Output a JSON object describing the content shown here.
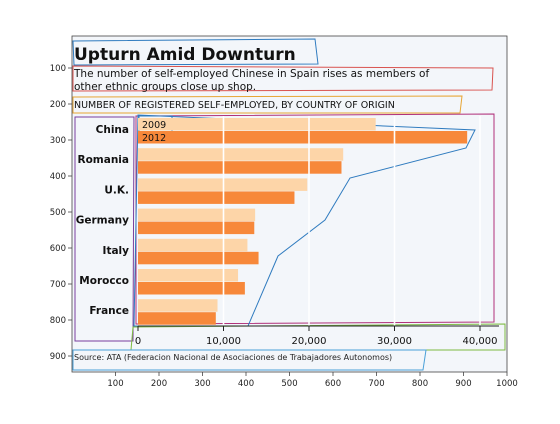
{
  "figure": {
    "frame_x_ticks": [
      "100",
      "200",
      "300",
      "400",
      "500",
      "600",
      "700",
      "800",
      "900",
      "1000"
    ],
    "frame_y_ticks": [
      "100",
      "200",
      "300",
      "400",
      "500",
      "600",
      "700",
      "800",
      "900"
    ]
  },
  "chart_data": {
    "type": "bar",
    "orientation": "horizontal",
    "title": "Upturn Amid Downturn",
    "subtitle": "The number of self-employed Chinese in Spain rises as members of other ethnic groups close up shop.",
    "subtitle_lines": [
      "The number of self-employed Chinese in Spain rises as members of",
      "other ethnic groups close up shop."
    ],
    "ylabel": "NUMBER OF REGISTERED SELF-EMPLOYED, BY COUNTRY OF ORIGIN",
    "source": "Source: ATA (Federacion Nacional de Asociaciones de Trabajadores Autonomos)",
    "categories": [
      "China",
      "Romania",
      "U.K.",
      "Germany",
      "Italy",
      "Morocco",
      "France"
    ],
    "series": [
      {
        "name": "2009",
        "color": "#fdd5a8",
        "values": [
          27800,
          24000,
          19800,
          13700,
          12800,
          11700,
          9300
        ]
      },
      {
        "name": "2012",
        "color": "#f7883a",
        "values": [
          38500,
          23800,
          18300,
          13600,
          14100,
          12500,
          9100
        ]
      }
    ],
    "xlim": [
      0,
      42000
    ],
    "x_ticks": [
      0,
      10000,
      20000,
      30000,
      40000
    ],
    "x_tick_labels": [
      "0",
      "10,000",
      "20,000",
      "30,000",
      "40,000"
    ],
    "grid": true,
    "legend": "inside-top-left"
  }
}
